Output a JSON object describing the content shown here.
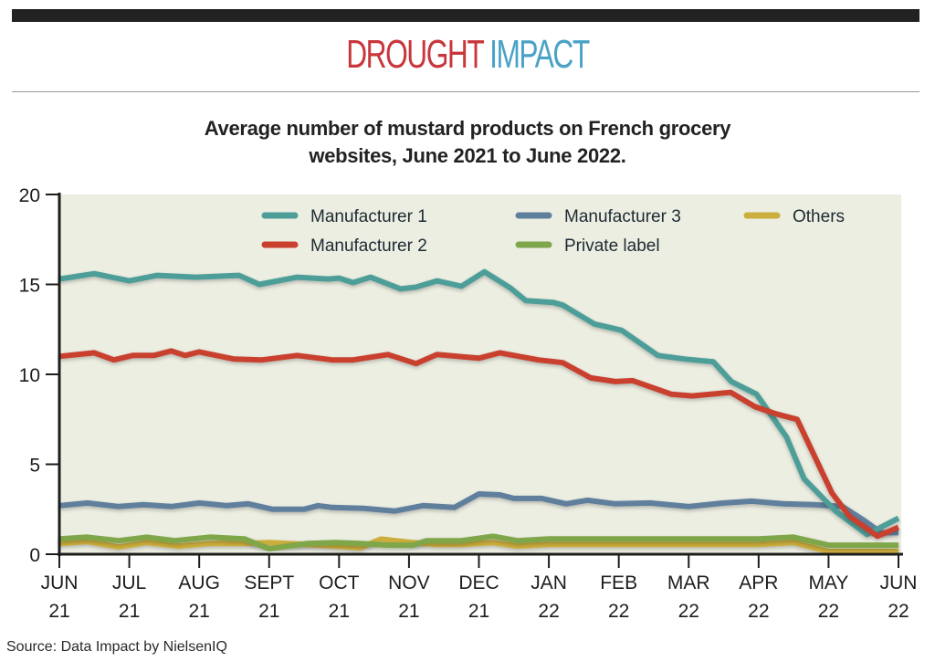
{
  "header": {
    "brand_word1": "DROUGHT",
    "brand_word2": "IMPACT",
    "brand_color1": "#c9363b",
    "brand_color2": "#4aa2c6"
  },
  "subtitle_line1": "Average number of mustard products on French grocery",
  "subtitle_line2": "websites, June 2021 to June 2022.",
  "source": "Source: Data Impact by NielsenIQ",
  "chart_data": {
    "type": "line",
    "title": "Average number of mustard products on French grocery websites, June 2021 to June 2022.",
    "xlabel": "",
    "ylabel": "",
    "ylim": [
      0,
      20
    ],
    "yticks": [
      0,
      5,
      10,
      15,
      20
    ],
    "xlim": [
      0,
      12
    ],
    "x_unit": "months since June 2021",
    "x_ticks": [
      {
        "top": "JUN",
        "bottom": "21"
      },
      {
        "top": "JUL",
        "bottom": "21"
      },
      {
        "top": "AUG",
        "bottom": "21"
      },
      {
        "top": "SEPT",
        "bottom": "21"
      },
      {
        "top": "OCT",
        "bottom": "21"
      },
      {
        "top": "NOV",
        "bottom": "21"
      },
      {
        "top": "DEC",
        "bottom": "21"
      },
      {
        "top": "JAN",
        "bottom": "22"
      },
      {
        "top": "FEB",
        "bottom": "22"
      },
      {
        "top": "MAR",
        "bottom": "22"
      },
      {
        "top": "APR",
        "bottom": "22"
      },
      {
        "top": "MAY",
        "bottom": "22"
      },
      {
        "top": "JUN",
        "bottom": "22"
      }
    ],
    "grid": false,
    "legend_position": "top",
    "series": [
      {
        "name": "Manufacturer 1",
        "color": "#4e9e98",
        "points": [
          [
            0,
            15.3
          ],
          [
            0.5,
            15.6
          ],
          [
            1.0,
            15.2
          ],
          [
            1.4,
            15.5
          ],
          [
            1.95,
            15.4
          ],
          [
            2.57,
            15.5
          ],
          [
            2.86,
            15.0
          ],
          [
            3.4,
            15.4
          ],
          [
            3.85,
            15.3
          ],
          [
            4.0,
            15.35
          ],
          [
            4.2,
            15.1
          ],
          [
            4.45,
            15.4
          ],
          [
            4.88,
            14.75
          ],
          [
            5.1,
            14.85
          ],
          [
            5.4,
            15.2
          ],
          [
            5.75,
            14.9
          ],
          [
            6.08,
            15.7
          ],
          [
            6.45,
            14.8
          ],
          [
            6.67,
            14.1
          ],
          [
            7.06,
            14.0
          ],
          [
            7.2,
            13.85
          ],
          [
            7.65,
            12.8
          ],
          [
            8.04,
            12.45
          ],
          [
            8.56,
            11.05
          ],
          [
            8.95,
            10.85
          ],
          [
            9.35,
            10.7
          ],
          [
            9.61,
            9.6
          ],
          [
            9.97,
            8.9
          ],
          [
            10.4,
            6.5
          ],
          [
            10.65,
            4.2
          ],
          [
            11.1,
            2.4
          ],
          [
            11.55,
            1.1
          ],
          [
            12.0,
            2.0
          ]
        ]
      },
      {
        "name": "Manufacturer 2",
        "color": "#c9402f",
        "points": [
          [
            0,
            11.0
          ],
          [
            0.5,
            11.2
          ],
          [
            0.78,
            10.8
          ],
          [
            1.05,
            11.05
          ],
          [
            1.35,
            11.05
          ],
          [
            1.6,
            11.3
          ],
          [
            1.8,
            11.05
          ],
          [
            2.0,
            11.25
          ],
          [
            2.5,
            10.85
          ],
          [
            2.9,
            10.8
          ],
          [
            3.4,
            11.05
          ],
          [
            3.9,
            10.8
          ],
          [
            4.2,
            10.8
          ],
          [
            4.7,
            11.1
          ],
          [
            5.1,
            10.6
          ],
          [
            5.4,
            11.1
          ],
          [
            6.0,
            10.9
          ],
          [
            6.3,
            11.2
          ],
          [
            6.85,
            10.8
          ],
          [
            7.2,
            10.65
          ],
          [
            7.6,
            9.8
          ],
          [
            7.95,
            9.6
          ],
          [
            8.2,
            9.65
          ],
          [
            8.75,
            8.9
          ],
          [
            9.05,
            8.8
          ],
          [
            9.6,
            9.0
          ],
          [
            9.95,
            8.2
          ],
          [
            10.25,
            7.8
          ],
          [
            10.55,
            7.5
          ],
          [
            11.05,
            3.4
          ],
          [
            11.3,
            2.1
          ],
          [
            11.7,
            1.0
          ],
          [
            12.0,
            1.5
          ]
        ]
      },
      {
        "name": "Manufacturer 3",
        "color": "#5e7f9d",
        "points": [
          [
            0,
            2.7
          ],
          [
            0.4,
            2.85
          ],
          [
            0.85,
            2.65
          ],
          [
            1.2,
            2.75
          ],
          [
            1.6,
            2.65
          ],
          [
            2.0,
            2.85
          ],
          [
            2.4,
            2.7
          ],
          [
            2.7,
            2.8
          ],
          [
            3.05,
            2.5
          ],
          [
            3.5,
            2.5
          ],
          [
            3.7,
            2.7
          ],
          [
            3.9,
            2.6
          ],
          [
            4.35,
            2.55
          ],
          [
            4.8,
            2.4
          ],
          [
            5.2,
            2.7
          ],
          [
            5.65,
            2.6
          ],
          [
            6.0,
            3.35
          ],
          [
            6.3,
            3.3
          ],
          [
            6.5,
            3.1
          ],
          [
            6.9,
            3.1
          ],
          [
            7.25,
            2.8
          ],
          [
            7.55,
            3.0
          ],
          [
            7.95,
            2.8
          ],
          [
            8.45,
            2.85
          ],
          [
            9.0,
            2.65
          ],
          [
            9.5,
            2.85
          ],
          [
            9.9,
            2.95
          ],
          [
            10.35,
            2.8
          ],
          [
            10.8,
            2.75
          ],
          [
            11.2,
            2.65
          ],
          [
            11.5,
            1.9
          ],
          [
            11.75,
            1.2
          ],
          [
            12.0,
            1.2
          ]
        ]
      },
      {
        "name": "Private label",
        "color": "#7fa64a",
        "points": [
          [
            0,
            0.85
          ],
          [
            0.4,
            0.95
          ],
          [
            0.85,
            0.75
          ],
          [
            1.25,
            0.95
          ],
          [
            1.65,
            0.75
          ],
          [
            2.15,
            0.95
          ],
          [
            2.65,
            0.85
          ],
          [
            3.0,
            0.3
          ],
          [
            3.55,
            0.6
          ],
          [
            3.95,
            0.65
          ],
          [
            4.3,
            0.6
          ],
          [
            4.7,
            0.5
          ],
          [
            5.05,
            0.5
          ],
          [
            5.25,
            0.75
          ],
          [
            5.75,
            0.75
          ],
          [
            6.2,
            1.0
          ],
          [
            6.55,
            0.75
          ],
          [
            7.0,
            0.85
          ],
          [
            7.5,
            0.85
          ],
          [
            8.5,
            0.85
          ],
          [
            9.5,
            0.85
          ],
          [
            10.0,
            0.85
          ],
          [
            10.5,
            0.95
          ],
          [
            11.0,
            0.5
          ],
          [
            11.5,
            0.5
          ],
          [
            12.0,
            0.5
          ]
        ]
      },
      {
        "name": "Others",
        "color": "#ccae3e",
        "points": [
          [
            0,
            0.6
          ],
          [
            0.4,
            0.7
          ],
          [
            0.85,
            0.4
          ],
          [
            1.25,
            0.65
          ],
          [
            1.7,
            0.45
          ],
          [
            2.15,
            0.6
          ],
          [
            2.65,
            0.6
          ],
          [
            3.0,
            0.65
          ],
          [
            3.55,
            0.55
          ],
          [
            3.95,
            0.45
          ],
          [
            4.3,
            0.35
          ],
          [
            4.6,
            0.85
          ],
          [
            5.05,
            0.65
          ],
          [
            5.4,
            0.55
          ],
          [
            5.75,
            0.55
          ],
          [
            6.2,
            0.65
          ],
          [
            6.55,
            0.45
          ],
          [
            7.0,
            0.55
          ],
          [
            8.0,
            0.55
          ],
          [
            9.0,
            0.55
          ],
          [
            10.0,
            0.55
          ],
          [
            10.5,
            0.65
          ],
          [
            11.0,
            0.15
          ],
          [
            11.5,
            0.15
          ],
          [
            12.0,
            0.15
          ]
        ]
      }
    ],
    "legend": [
      {
        "label": "Manufacturer 1",
        "color": "#4e9e98"
      },
      {
        "label": "Manufacturer 3",
        "color": "#5e7f9d"
      },
      {
        "label": "Others",
        "color": "#ccae3e"
      },
      {
        "label": "Manufacturer 2",
        "color": "#c9402f"
      },
      {
        "label": "Private label",
        "color": "#7fa64a"
      }
    ]
  }
}
